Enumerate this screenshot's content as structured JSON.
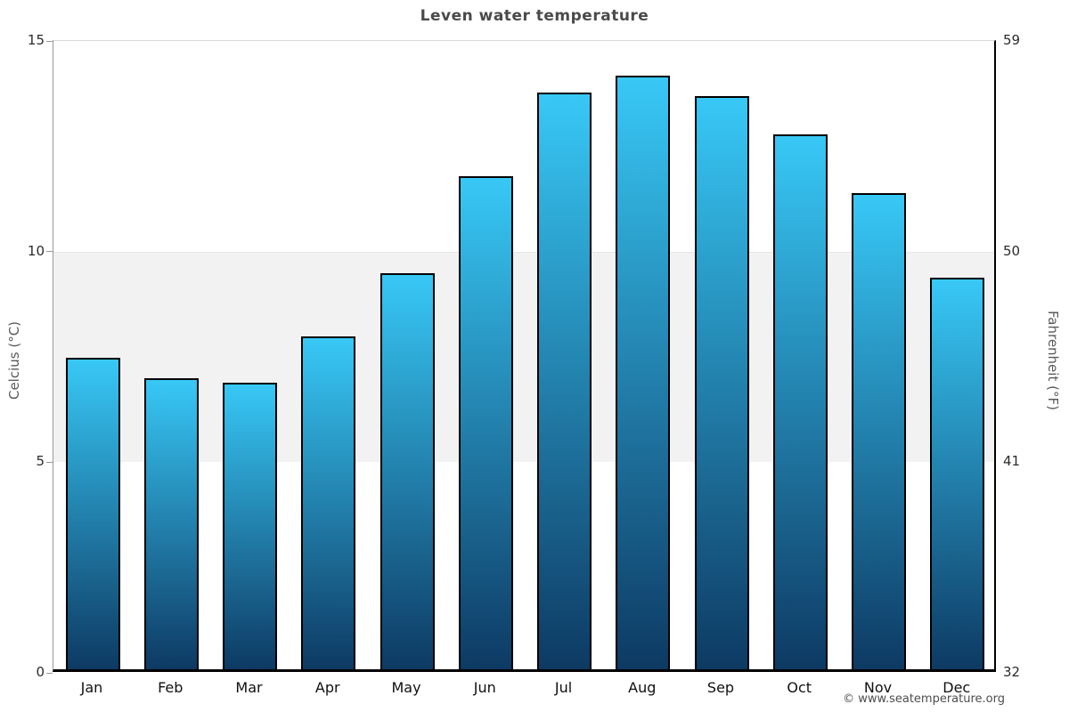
{
  "page": {
    "title": "Leven water temperature",
    "copyright": "© www.seatemperature.org"
  },
  "axes": {
    "left_title": "Celcius (°C)",
    "right_title": "Fahrenheit (°F)"
  },
  "chart_data": {
    "type": "bar",
    "title": "Leven water temperature",
    "categories": [
      "Jan",
      "Feb",
      "Mar",
      "Apr",
      "May",
      "Jun",
      "Jul",
      "Aug",
      "Sep",
      "Oct",
      "Nov",
      "Dec"
    ],
    "values": [
      7.4,
      6.9,
      6.8,
      7.9,
      9.4,
      11.7,
      13.7,
      14.1,
      13.6,
      12.7,
      11.3,
      9.3
    ],
    "xlabel": "",
    "ylabel_left": "Celcius (°C)",
    "ylabel_right": "Fahrenheit (°F)",
    "ylim": [
      0,
      15
    ],
    "yticks_left": [
      0,
      5,
      10,
      15
    ],
    "yticks_right": [
      32,
      41,
      50,
      59
    ],
    "grid": false,
    "legend": false,
    "band": {
      "from": 5,
      "to": 10,
      "color": "#f2f2f2"
    },
    "colors": {
      "bar_gradient_top": "#38c8f6",
      "bar_gradient_bottom": "#0d3a63",
      "bar_border": "#000000",
      "title_text": "#4a4a4a",
      "axis_text": "#2b2b2b"
    }
  }
}
